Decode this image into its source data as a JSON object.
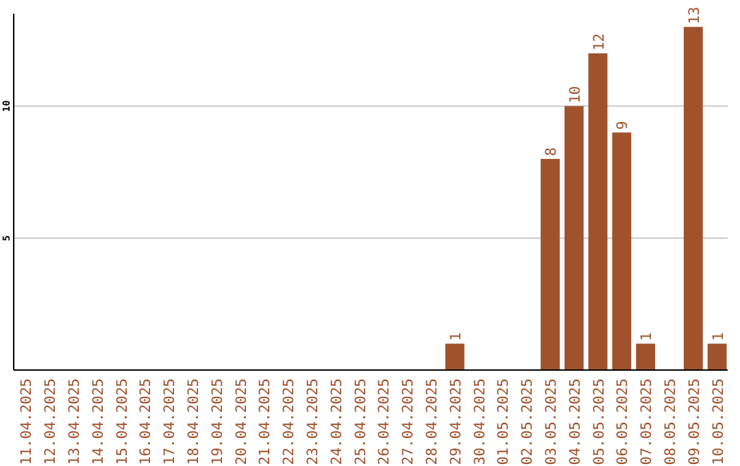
{
  "chart_data": {
    "type": "bar",
    "categories": [
      "11.04.2025",
      "12.04.2025",
      "13.04.2025",
      "14.04.2025",
      "15.04.2025",
      "16.04.2025",
      "17.04.2025",
      "18.04.2025",
      "19.04.2025",
      "20.04.2025",
      "21.04.2025",
      "22.04.2025",
      "23.04.2025",
      "24.04.2025",
      "25.04.2025",
      "26.04.2025",
      "27.04.2025",
      "28.04.2025",
      "29.04.2025",
      "30.04.2025",
      "01.05.2025",
      "02.05.2025",
      "03.05.2025",
      "04.05.2025",
      "05.05.2025",
      "06.05.2025",
      "07.05.2025",
      "08.05.2025",
      "09.05.2025",
      "10.05.2025"
    ],
    "values": [
      0,
      0,
      0,
      0,
      0,
      0,
      0,
      0,
      0,
      0,
      0,
      0,
      0,
      0,
      0,
      0,
      0,
      0,
      1,
      0,
      0,
      0,
      8,
      10,
      12,
      9,
      1,
      0,
      13,
      1
    ],
    "value_labels": [
      null,
      null,
      null,
      null,
      null,
      null,
      null,
      null,
      null,
      null,
      null,
      null,
      null,
      null,
      null,
      null,
      null,
      null,
      "1",
      null,
      null,
      null,
      "8",
      "10",
      "12",
      "9",
      "1",
      null,
      "13",
      "1"
    ],
    "color": "#a0522d",
    "ylim": [
      0,
      13.5
    ],
    "yticks": [
      5,
      10
    ],
    "grid": "y"
  }
}
